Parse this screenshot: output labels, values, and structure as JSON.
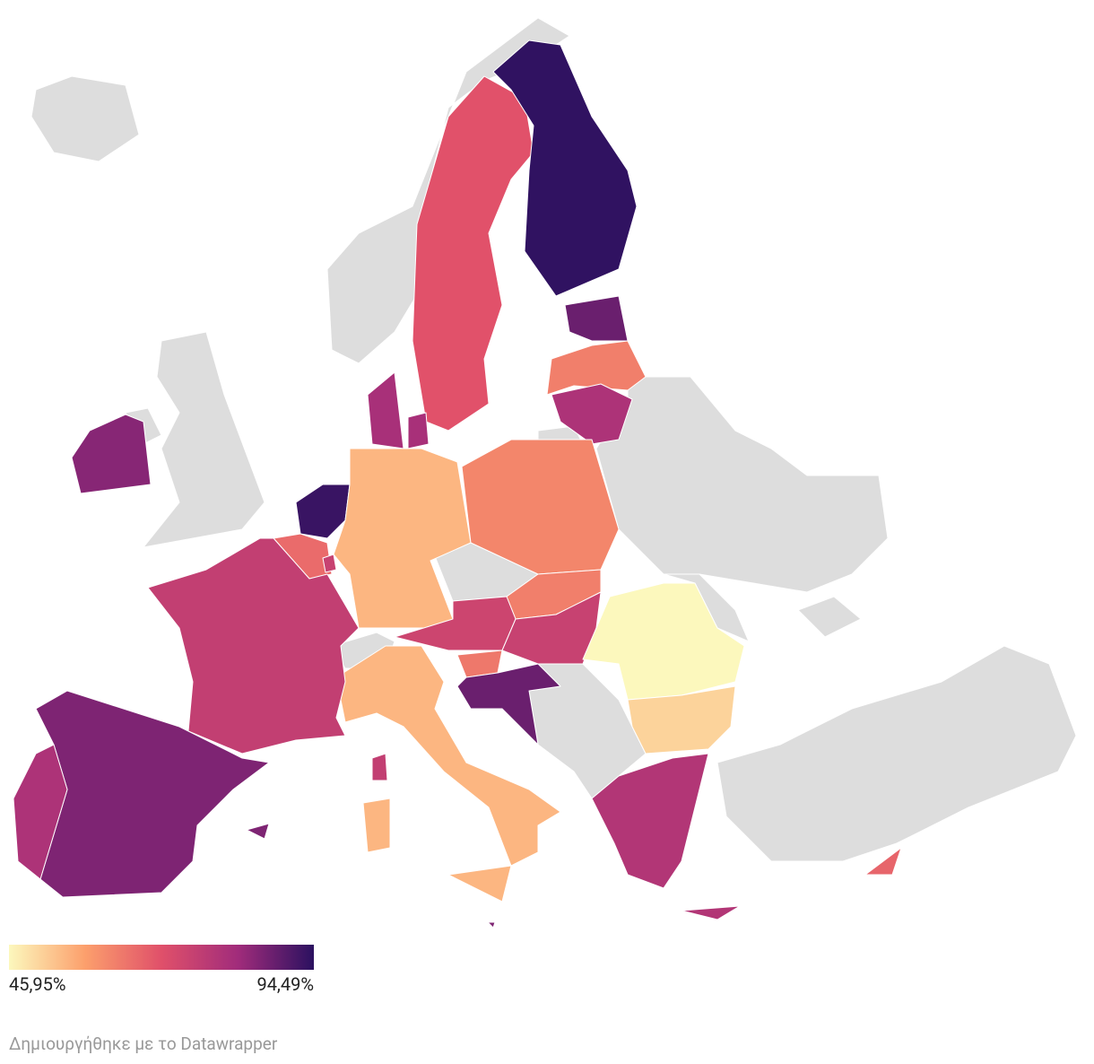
{
  "map": {
    "regions": [
      85,
      70,
      94,
      88,
      63,
      80,
      81,
      93,
      66,
      75,
      55,
      62,
      63,
      74,
      75,
      64,
      88,
      46,
      51,
      79,
      67,
      55,
      76,
      86,
      80,
      86
    ],
    "colorscale": [
      "#fcf8bd",
      "#fc9f6c",
      "#e0506a",
      "#a12c7b",
      "#2b1160"
    ],
    "missing_color": "#dddddd",
    "legend": {
      "min": {
        "value": 45.95,
        "label": "45,95%"
      },
      "max": {
        "value": 94.49,
        "label": "94,49%"
      }
    },
    "footer": "Δημιουργήθηκε με το Datawrapper"
  }
}
